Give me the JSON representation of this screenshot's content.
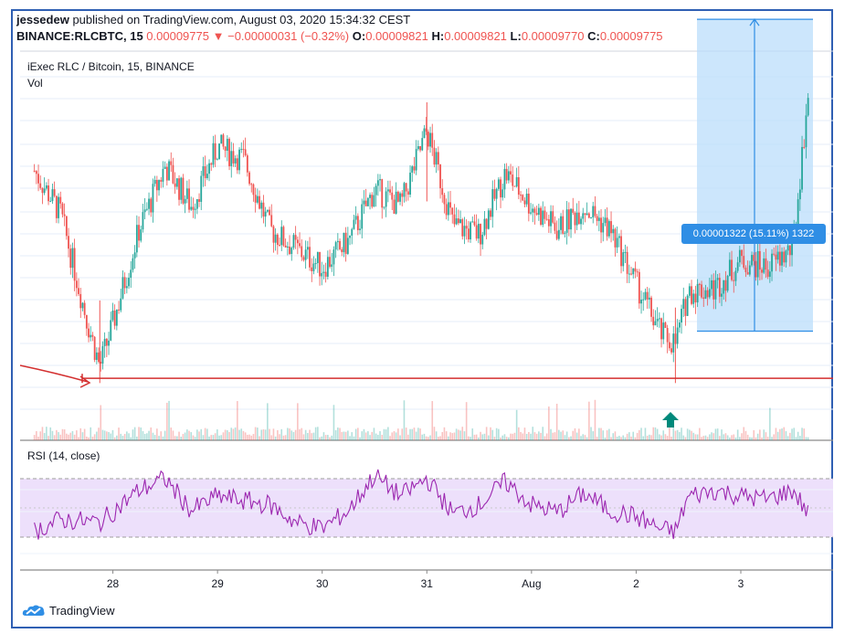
{
  "header": {
    "author": "jessedew",
    "published_text": "published on TradingView.com, August 03, 2020 15:34:32 CEST",
    "symbol": "BINANCE:RLCBTC, 15",
    "last_price": "0.00009775",
    "change_arrow": "▼",
    "change": "−0.00000031 (−0.32%)",
    "o_label": "O:",
    "o_value": "0.00009821",
    "h_label": "H:",
    "h_value": "0.00009821",
    "l_label": "L:",
    "l_value": "0.00009770",
    "c_label": "C:",
    "c_value": "0.00009775"
  },
  "main_pane": {
    "title": "iExec RLC / Bitcoin, 15, BINANCE",
    "volume_label": "Vol"
  },
  "rsi_pane": {
    "title": "RSI (14, close)"
  },
  "measure": {
    "label": "0.00001322 (15.11%) 1322"
  },
  "brand": {
    "name": "TradingView"
  },
  "colors": {
    "up": "#26a69a",
    "down": "#ef5350",
    "rsi_line": "#9c27b0",
    "rsi_band": "#ede0fb",
    "support_line": "#d32f2f",
    "measure_box": "#bbdefb",
    "measure_accent": "#2f8ee5",
    "frame": "#2f5fb3"
  },
  "chart_data": {
    "type": "candlestick",
    "x_tick_labels": [
      "28",
      "29",
      "30",
      "31",
      "Aug",
      "2",
      "3"
    ],
    "price_path": [
      {
        "date": "2020-07-27 06:00",
        "price": 9.43e-05
      },
      {
        "date": "2020-07-27 12:00",
        "price": 9.25e-05
      },
      {
        "date": "2020-07-27 18:00",
        "price": 8.8e-05
      },
      {
        "date": "2020-07-27 21:00",
        "price": 8.6e-05
      },
      {
        "date": "2020-07-28 00:00",
        "price": 8.78e-05
      },
      {
        "date": "2020-07-28 06:00",
        "price": 9.18e-05
      },
      {
        "date": "2020-07-28 12:00",
        "price": 9.45e-05
      },
      {
        "date": "2020-07-28 18:00",
        "price": 9.28e-05
      },
      {
        "date": "2020-07-29 00:00",
        "price": 9.53e-05
      },
      {
        "date": "2020-07-29 06:00",
        "price": 9.48e-05
      },
      {
        "date": "2020-07-29 12:00",
        "price": 9.18e-05
      },
      {
        "date": "2020-07-29 18:00",
        "price": 9.1e-05
      },
      {
        "date": "2020-07-30 00:00",
        "price": 9.02e-05
      },
      {
        "date": "2020-07-30 06:00",
        "price": 9.13e-05
      },
      {
        "date": "2020-07-30 12:00",
        "price": 9.35e-05
      },
      {
        "date": "2020-07-30 18:00",
        "price": 9.28e-05
      },
      {
        "date": "2020-07-31 00:00",
        "price": 9.6e-05
      },
      {
        "date": "2020-07-31 06:00",
        "price": 9.2e-05
      },
      {
        "date": "2020-07-31 12:00",
        "price": 9.16e-05
      },
      {
        "date": "2020-07-31 18:00",
        "price": 9.42e-05
      },
      {
        "date": "2020-08-01 00:00",
        "price": 9.28e-05
      },
      {
        "date": "2020-08-01 06:00",
        "price": 9.18e-05
      },
      {
        "date": "2020-08-01 12:00",
        "price": 9.28e-05
      },
      {
        "date": "2020-08-01 18:00",
        "price": 9.18e-05
      },
      {
        "date": "2020-08-02 00:00",
        "price": 8.95e-05
      },
      {
        "date": "2020-08-02 06:00",
        "price": 8.73e-05
      },
      {
        "date": "2020-08-02 09:00",
        "price": 8.7e-05
      },
      {
        "date": "2020-08-02 12:00",
        "price": 8.92e-05
      },
      {
        "date": "2020-08-02 18:00",
        "price": 8.93e-05
      },
      {
        "date": "2020-08-03 00:00",
        "price": 9.05e-05
      },
      {
        "date": "2020-08-03 06:00",
        "price": 9.02e-05
      },
      {
        "date": "2020-08-03 12:00",
        "price": 9.1e-05
      },
      {
        "date": "2020-08-03 15:30",
        "price": 9.775e-05
      }
    ],
    "support_level": 8.55e-05,
    "measure_range": {
      "from": 8.75e-05,
      "to": 0.00010072,
      "change": "0.00001322",
      "percent": "15.11%"
    },
    "rsi": {
      "period": 14,
      "band_upper": 70,
      "band_lower": 30,
      "path": [
        {
          "date": "2020-07-27 06:00",
          "value": 34
        },
        {
          "date": "2020-07-27 12:00",
          "value": 42
        },
        {
          "date": "2020-07-27 21:00",
          "value": 40
        },
        {
          "date": "2020-07-28 06:00",
          "value": 62
        },
        {
          "date": "2020-07-28 12:00",
          "value": 70
        },
        {
          "date": "2020-07-28 18:00",
          "value": 48
        },
        {
          "date": "2020-07-29 00:00",
          "value": 58
        },
        {
          "date": "2020-07-29 12:00",
          "value": 52
        },
        {
          "date": "2020-07-29 18:00",
          "value": 40
        },
        {
          "date": "2020-07-30 00:00",
          "value": 36
        },
        {
          "date": "2020-07-30 06:00",
          "value": 48
        },
        {
          "date": "2020-07-30 12:00",
          "value": 72
        },
        {
          "date": "2020-07-30 18:00",
          "value": 58
        },
        {
          "date": "2020-07-31 00:00",
          "value": 70
        },
        {
          "date": "2020-07-31 06:00",
          "value": 46
        },
        {
          "date": "2020-07-31 12:00",
          "value": 52
        },
        {
          "date": "2020-07-31 18:00",
          "value": 68
        },
        {
          "date": "2020-08-01 00:00",
          "value": 52
        },
        {
          "date": "2020-08-01 06:00",
          "value": 47
        },
        {
          "date": "2020-08-01 12:00",
          "value": 60
        },
        {
          "date": "2020-08-01 18:00",
          "value": 48
        },
        {
          "date": "2020-08-02 00:00",
          "value": 44
        },
        {
          "date": "2020-08-02 06:00",
          "value": 35
        },
        {
          "date": "2020-08-02 09:00",
          "value": 34
        },
        {
          "date": "2020-08-02 12:00",
          "value": 58
        },
        {
          "date": "2020-08-02 18:00",
          "value": 62
        },
        {
          "date": "2020-08-03 00:00",
          "value": 58
        },
        {
          "date": "2020-08-03 06:00",
          "value": 56
        },
        {
          "date": "2020-08-03 12:00",
          "value": 62
        },
        {
          "date": "2020-08-03 15:30",
          "value": 46
        }
      ]
    }
  }
}
